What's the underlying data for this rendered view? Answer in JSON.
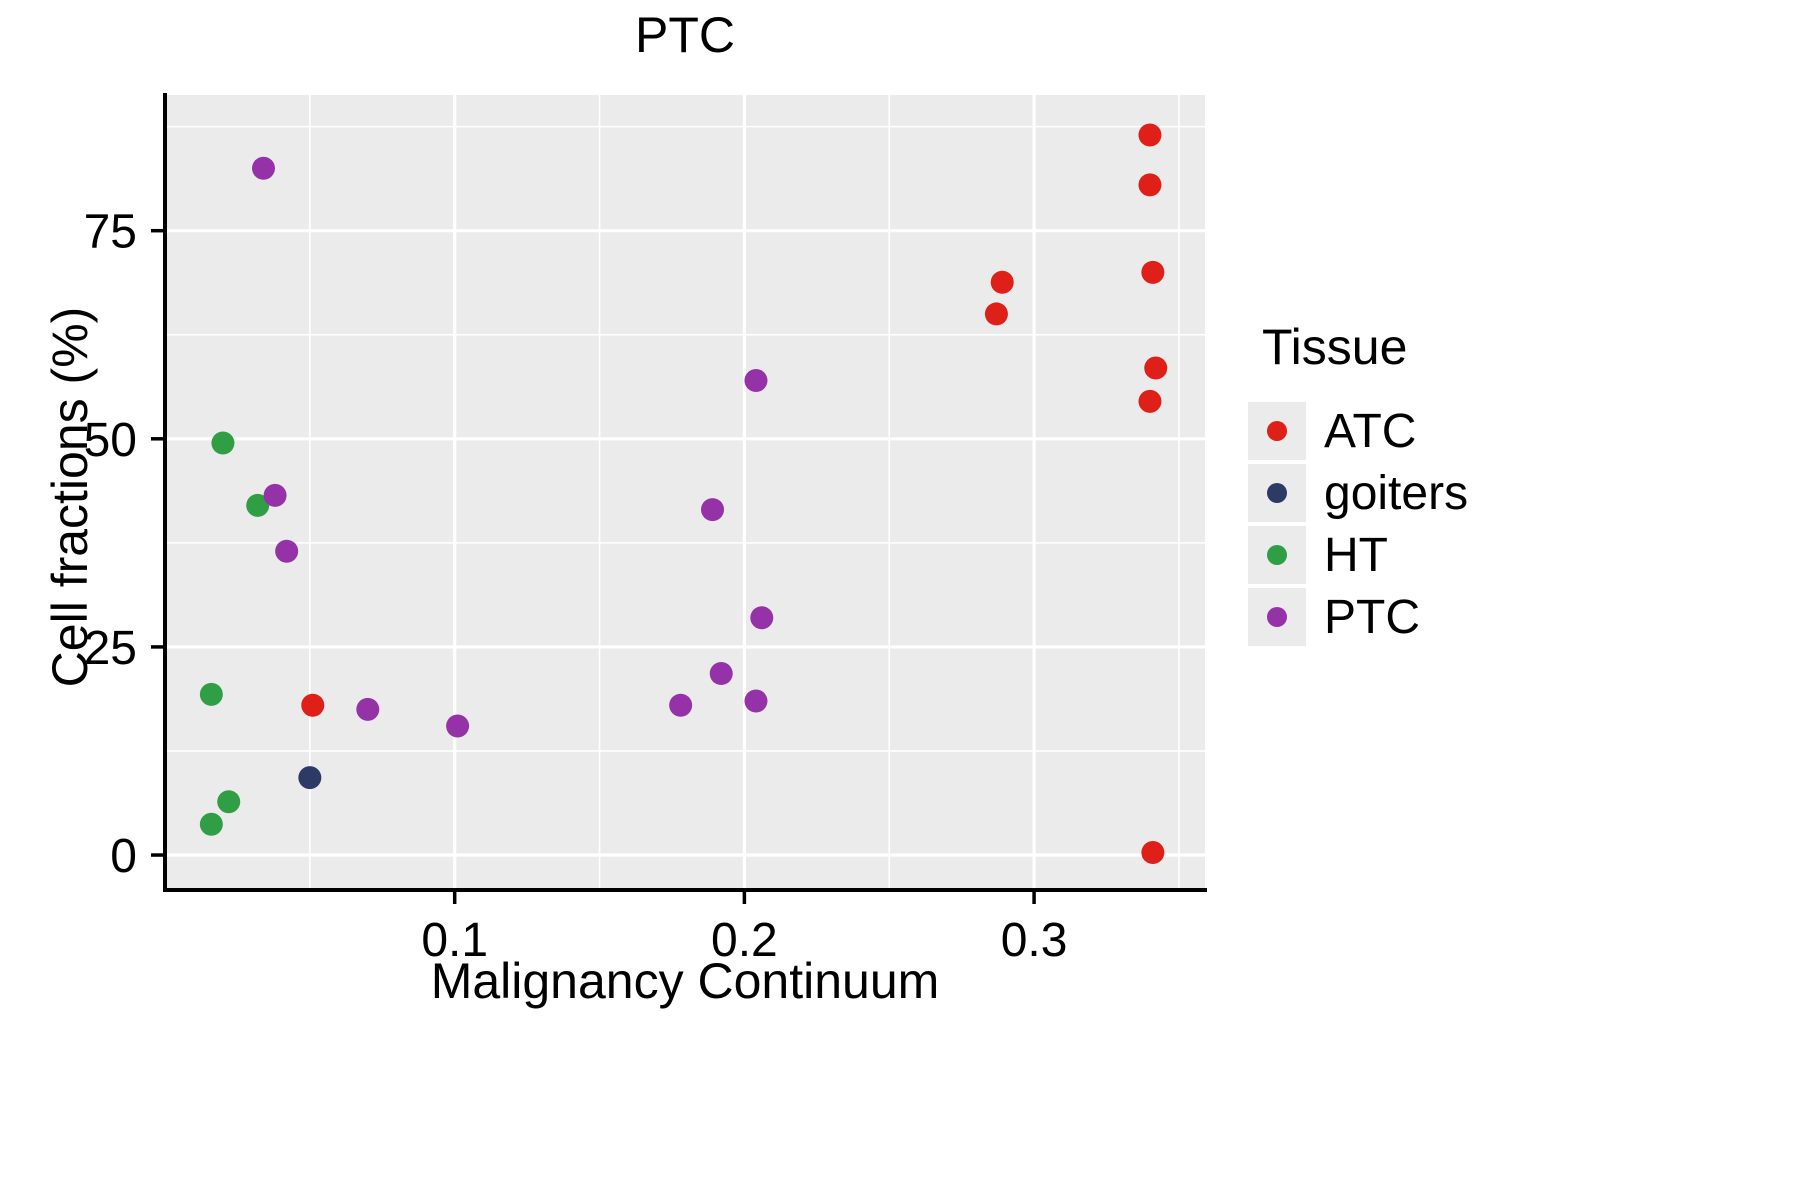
{
  "title": "PTC",
  "legend": {
    "title": "Tissue"
  },
  "colors": {
    "panel_bg": "#EBEBEB",
    "grid": "#FFFFFF",
    "axis": "#000000",
    "legend_key_bg": "#EBEBEB"
  },
  "chart_data": {
    "type": "scatter",
    "title": "PTC",
    "xlabel": "Malignancy Continuum",
    "ylabel": "Cell fractions (%)",
    "xlim": [
      0.0,
      0.359
    ],
    "ylim": [
      -4.2,
      91.3
    ],
    "grid": "on",
    "legend_position": "right",
    "x_ticks": [
      {
        "v": 0.1,
        "label": "0.1"
      },
      {
        "v": 0.2,
        "label": "0.2"
      },
      {
        "v": 0.3,
        "label": "0.3"
      }
    ],
    "x_minor": [
      0.05,
      0.15,
      0.25,
      0.35
    ],
    "y_ticks": [
      {
        "v": 0,
        "label": "0"
      },
      {
        "v": 25,
        "label": "25"
      },
      {
        "v": 50,
        "label": "50"
      },
      {
        "v": 75,
        "label": "75"
      }
    ],
    "y_minor": [
      12.5,
      37.5,
      62.5,
      87.5
    ],
    "series": [
      {
        "name": "ATC",
        "color": "#DE2018",
        "points": [
          [
            0.34,
            86.5
          ],
          [
            0.34,
            80.5
          ],
          [
            0.341,
            70.0
          ],
          [
            0.289,
            68.8
          ],
          [
            0.287,
            65.0
          ],
          [
            0.342,
            58.5
          ],
          [
            0.34,
            54.5
          ],
          [
            0.051,
            18.0
          ],
          [
            0.341,
            0.3
          ]
        ]
      },
      {
        "name": "goiters",
        "color": "#2D3A66",
        "points": [
          [
            0.05,
            9.3
          ]
        ]
      },
      {
        "name": "HT",
        "color": "#2F9E45",
        "points": [
          [
            0.02,
            49.5
          ],
          [
            0.032,
            42.0
          ],
          [
            0.016,
            19.3
          ],
          [
            0.022,
            6.4
          ],
          [
            0.016,
            3.7
          ]
        ]
      },
      {
        "name": "PTC",
        "color": "#9632A8",
        "points": [
          [
            0.034,
            82.5
          ],
          [
            0.038,
            43.2
          ],
          [
            0.042,
            36.5
          ],
          [
            0.204,
            57.0
          ],
          [
            0.189,
            41.5
          ],
          [
            0.206,
            28.5
          ],
          [
            0.192,
            21.8
          ],
          [
            0.178,
            18.0
          ],
          [
            0.204,
            18.5
          ],
          [
            0.07,
            17.5
          ],
          [
            0.101,
            15.5
          ]
        ]
      }
    ]
  }
}
